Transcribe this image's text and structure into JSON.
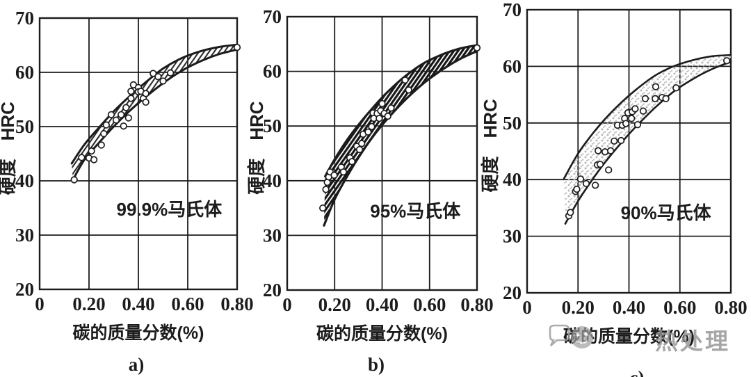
{
  "figure": {
    "background_color": "#ffffff",
    "ink_color": "#1c1c1c",
    "watermark_color": "#939393"
  },
  "watermark": {
    "icons": [
      "speech-bubble-icon",
      "smiley-icon"
    ],
    "text": "热处理"
  },
  "chart_data": [
    {
      "type": "scatter",
      "panel": "a",
      "caption": "a)",
      "annotation": "99.9%马氏体",
      "annotation_at": [
        0.525,
        34.6
      ],
      "xlabel": "碳的质量分数(%)",
      "ylabel": "硬度　HRC",
      "xlim": [
        0,
        0.8
      ],
      "ylim": [
        20,
        70
      ],
      "x_ticks": [
        0,
        0.2,
        0.4,
        0.6,
        0.8
      ],
      "x_tick_labels": [
        "0",
        "0.20",
        "0.40",
        "0.60",
        "0.80"
      ],
      "y_ticks": [
        20,
        30,
        40,
        50,
        60,
        70
      ],
      "y_tick_labels": [
        "20",
        "30",
        "40",
        "50",
        "60",
        "70"
      ],
      "grid": true,
      "band_style": "hatch-medium",
      "band_upper": [
        [
          0.13,
          43.2
        ],
        [
          0.18,
          46.6
        ],
        [
          0.24,
          49.8
        ],
        [
          0.3,
          52.8
        ],
        [
          0.36,
          55.4
        ],
        [
          0.42,
          57.8
        ],
        [
          0.5,
          60.7
        ],
        [
          0.58,
          62.7
        ],
        [
          0.66,
          64.0
        ],
        [
          0.73,
          64.7
        ],
        [
          0.8,
          65.1
        ]
      ],
      "band_lower": [
        [
          0.135,
          40.2
        ],
        [
          0.18,
          43.8
        ],
        [
          0.24,
          47.0
        ],
        [
          0.3,
          50.0
        ],
        [
          0.36,
          52.7
        ],
        [
          0.42,
          55.1
        ],
        [
          0.5,
          58.0
        ],
        [
          0.58,
          60.4
        ],
        [
          0.66,
          62.2
        ],
        [
          0.73,
          63.4
        ],
        [
          0.8,
          64.2
        ]
      ],
      "points": [
        [
          0.14,
          40.2
        ],
        [
          0.17,
          44.3
        ],
        [
          0.2,
          44.2
        ],
        [
          0.21,
          45.5
        ],
        [
          0.22,
          43.9
        ],
        [
          0.25,
          46.6
        ],
        [
          0.26,
          48.7
        ],
        [
          0.27,
          50.3
        ],
        [
          0.29,
          52.2
        ],
        [
          0.31,
          51.2
        ],
        [
          0.33,
          52.2
        ],
        [
          0.34,
          50.1
        ],
        [
          0.35,
          53.5
        ],
        [
          0.36,
          51.6
        ],
        [
          0.37,
          55.2
        ],
        [
          0.37,
          56.5
        ],
        [
          0.38,
          57.7
        ],
        [
          0.4,
          57.2
        ],
        [
          0.4,
          56.4
        ],
        [
          0.41,
          56.5
        ],
        [
          0.42,
          55.2
        ],
        [
          0.43,
          54.5
        ],
        [
          0.43,
          56.1
        ],
        [
          0.46,
          59.8
        ],
        [
          0.48,
          59.2
        ],
        [
          0.5,
          58.4
        ],
        [
          0.53,
          59.9
        ],
        [
          0.8,
          64.6
        ]
      ]
    },
    {
      "type": "scatter",
      "panel": "b",
      "caption": "b)",
      "annotation": "95%马氏体",
      "annotation_at": [
        0.54,
        34.3
      ],
      "xlabel": "碳的质量分数(%)",
      "ylabel": "硬度　HRC",
      "xlim": [
        0,
        0.8
      ],
      "ylim": [
        20,
        70
      ],
      "x_ticks": [
        0,
        0.2,
        0.4,
        0.6,
        0.8
      ],
      "x_tick_labels": [
        "0",
        "0.20",
        "0.40",
        "0.60",
        "0.80"
      ],
      "y_ticks": [
        20,
        30,
        40,
        50,
        60,
        70
      ],
      "y_tick_labels": [
        "20",
        "30",
        "40",
        "50",
        "60",
        "70"
      ],
      "grid": true,
      "band_style": "hatch-dense",
      "band_upper": [
        [
          0.16,
          40.8
        ],
        [
          0.2,
          43.9
        ],
        [
          0.25,
          47.3
        ],
        [
          0.3,
          50.2
        ],
        [
          0.36,
          53.3
        ],
        [
          0.42,
          56.1
        ],
        [
          0.5,
          59.2
        ],
        [
          0.58,
          61.6
        ],
        [
          0.66,
          63.2
        ],
        [
          0.73,
          64.2
        ],
        [
          0.8,
          64.8
        ]
      ],
      "band_lower": [
        [
          0.155,
          31.8
        ],
        [
          0.2,
          36.6
        ],
        [
          0.25,
          40.6
        ],
        [
          0.3,
          44.2
        ],
        [
          0.36,
          48.0
        ],
        [
          0.42,
          51.2
        ],
        [
          0.5,
          54.9
        ],
        [
          0.58,
          58.0
        ],
        [
          0.66,
          60.5
        ],
        [
          0.73,
          62.3
        ],
        [
          0.8,
          63.7
        ]
      ],
      "points": [
        [
          0.15,
          35.0
        ],
        [
          0.163,
          38.4
        ],
        [
          0.169,
          39.7
        ],
        [
          0.175,
          40.7
        ],
        [
          0.181,
          41.6
        ],
        [
          0.198,
          41.0
        ],
        [
          0.228,
          42.5
        ],
        [
          0.237,
          41.6
        ],
        [
          0.264,
          44.2
        ],
        [
          0.273,
          43.5
        ],
        [
          0.293,
          46.3
        ],
        [
          0.305,
          45.7
        ],
        [
          0.314,
          46.8
        ],
        [
          0.32,
          48.5
        ],
        [
          0.341,
          48.9
        ],
        [
          0.356,
          49.9
        ],
        [
          0.362,
          52.4
        ],
        [
          0.365,
          51.4
        ],
        [
          0.379,
          52.3
        ],
        [
          0.388,
          51.4
        ],
        [
          0.394,
          52.8
        ],
        [
          0.4,
          54.1
        ],
        [
          0.409,
          52.3
        ],
        [
          0.424,
          51.8
        ],
        [
          0.438,
          53.3
        ],
        [
          0.497,
          58.4
        ],
        [
          0.512,
          56.6
        ],
        [
          0.8,
          64.3
        ]
      ]
    },
    {
      "type": "scatter",
      "panel": "c",
      "caption": "c)",
      "annotation": "90%马氏体",
      "annotation_at": [
        0.545,
        34.0
      ],
      "xlabel": "碳的质量分数(%)",
      "ylabel": "硬度　HRC",
      "xlim": [
        0,
        0.8
      ],
      "ylim": [
        20,
        70
      ],
      "x_ticks": [
        0,
        0.2,
        0.4,
        0.6,
        0.8
      ],
      "x_tick_labels": [
        "0",
        "0.20",
        "0.40",
        "0.60",
        "0.80"
      ],
      "y_ticks": [
        20,
        30,
        40,
        50,
        60,
        70
      ],
      "y_tick_labels": [
        "20",
        "30",
        "40",
        "50",
        "60",
        "70"
      ],
      "grid": true,
      "band_style": "stipple",
      "band_upper": [
        [
          0.145,
          40.2
        ],
        [
          0.2,
          44.6
        ],
        [
          0.25,
          47.7
        ],
        [
          0.3,
          50.4
        ],
        [
          0.36,
          53.2
        ],
        [
          0.42,
          55.6
        ],
        [
          0.5,
          58.3
        ],
        [
          0.58,
          60.1
        ],
        [
          0.66,
          61.2
        ],
        [
          0.73,
          61.8
        ],
        [
          0.8,
          62.0
        ]
      ],
      "band_lower": [
        [
          0.15,
          32.2
        ],
        [
          0.2,
          36.2
        ],
        [
          0.25,
          39.6
        ],
        [
          0.3,
          42.7
        ],
        [
          0.36,
          46.0
        ],
        [
          0.42,
          49.0
        ],
        [
          0.5,
          52.6
        ],
        [
          0.58,
          55.7
        ],
        [
          0.66,
          58.0
        ],
        [
          0.73,
          59.6
        ],
        [
          0.8,
          60.8
        ]
      ],
      "points": [
        [
          0.164,
          33.6
        ],
        [
          0.17,
          34.2
        ],
        [
          0.19,
          37.9
        ],
        [
          0.195,
          38.3
        ],
        [
          0.21,
          40.1
        ],
        [
          0.232,
          39.3
        ],
        [
          0.268,
          39.0
        ],
        [
          0.276,
          42.6
        ],
        [
          0.287,
          42.7
        ],
        [
          0.279,
          45.1
        ],
        [
          0.306,
          44.9
        ],
        [
          0.32,
          41.7
        ],
        [
          0.328,
          45.1
        ],
        [
          0.342,
          46.8
        ],
        [
          0.355,
          49.6
        ],
        [
          0.369,
          46.9
        ],
        [
          0.374,
          49.6
        ],
        [
          0.383,
          50.8
        ],
        [
          0.388,
          49.9
        ],
        [
          0.396,
          51.8
        ],
        [
          0.41,
          50.8
        ],
        [
          0.413,
          52.0
        ],
        [
          0.424,
          52.5
        ],
        [
          0.434,
          49.7
        ],
        [
          0.456,
          52.1
        ],
        [
          0.464,
          54.3
        ],
        [
          0.503,
          54.3
        ],
        [
          0.505,
          56.4
        ],
        [
          0.53,
          54.5
        ],
        [
          0.545,
          54.3
        ],
        [
          0.585,
          56.2
        ],
        [
          0.784,
          61.0
        ]
      ]
    }
  ]
}
